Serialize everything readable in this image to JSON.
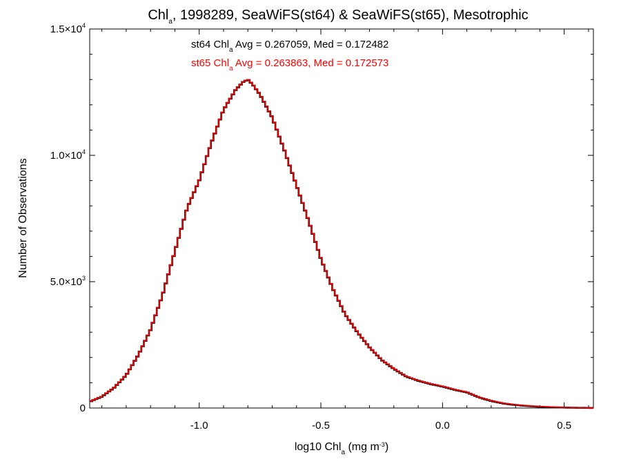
{
  "chart_data": {
    "type": "line",
    "step": true,
    "title": {
      "pre": "Chl",
      "sub": "a",
      "post": ", 1998289, SeaWiFS(st64) & SeaWiFS(st65), Mesotrophic"
    },
    "xlabel": {
      "pre": "log10 Chl",
      "sub": "a",
      "mid": " (mg m",
      "sup": "-3",
      "post": ")"
    },
    "ylabel": "Number of Observations",
    "xlim": [
      -1.45,
      0.62
    ],
    "ylim": [
      0,
      15000
    ],
    "x_ticks": [
      {
        "value": -1.0,
        "label": "-1.0"
      },
      {
        "value": -0.5,
        "label": "-0.5"
      },
      {
        "value": 0.0,
        "label": "0.0"
      },
      {
        "value": 0.5,
        "label": "0.5"
      }
    ],
    "y_ticks": [
      {
        "value": 0,
        "label": "0",
        "exp": ""
      },
      {
        "value": 5000,
        "label": "5.0×10",
        "exp": "3"
      },
      {
        "value": 10000,
        "label": "1.0×10",
        "exp": "4"
      },
      {
        "value": 15000,
        "label": "1.5×10",
        "exp": "4"
      }
    ],
    "annotations": [
      {
        "pre": "st64 Chl",
        "sub": "a",
        "post": " Avg = 0.267059, Med = 0.172482",
        "color": "#000000"
      },
      {
        "pre": "st65 Chl",
        "sub": "a",
        "post": " Avg = 0.263863, Med = 0.172573",
        "color": "#ff0000"
      }
    ],
    "series": [
      {
        "color": "#000000",
        "x": [
          -1.45,
          -1.4,
          -1.35,
          -1.3,
          -1.25,
          -1.2,
          -1.15,
          -1.1,
          -1.05,
          -1.0,
          -0.95,
          -0.9,
          -0.85,
          -0.82,
          -0.8,
          -0.78,
          -0.75,
          -0.7,
          -0.65,
          -0.6,
          -0.55,
          -0.5,
          -0.45,
          -0.4,
          -0.35,
          -0.3,
          -0.25,
          -0.2,
          -0.15,
          -0.1,
          -0.05,
          0.0,
          0.05,
          0.1,
          0.15,
          0.2,
          0.25,
          0.3,
          0.35,
          0.4,
          0.45,
          0.5,
          0.55,
          0.6,
          0.62
        ],
        "y": [
          250,
          450,
          800,
          1300,
          2100,
          3100,
          4500,
          6200,
          7900,
          9000,
          10500,
          11800,
          12600,
          12900,
          13000,
          12800,
          12400,
          11500,
          10200,
          8800,
          7400,
          5900,
          4700,
          3700,
          3000,
          2400,
          1900,
          1550,
          1250,
          1080,
          950,
          850,
          720,
          620,
          420,
          280,
          180,
          120,
          80,
          50,
          30,
          20,
          10,
          5,
          0
        ]
      },
      {
        "color": "#ff0000",
        "x": [
          -1.45,
          -1.4,
          -1.35,
          -1.3,
          -1.25,
          -1.2,
          -1.15,
          -1.1,
          -1.05,
          -1.0,
          -0.95,
          -0.9,
          -0.85,
          -0.82,
          -0.8,
          -0.78,
          -0.75,
          -0.7,
          -0.65,
          -0.6,
          -0.55,
          -0.5,
          -0.45,
          -0.4,
          -0.35,
          -0.3,
          -0.25,
          -0.2,
          -0.15,
          -0.1,
          -0.05,
          0.0,
          0.05,
          0.1,
          0.15,
          0.2,
          0.25,
          0.3,
          0.35,
          0.4,
          0.45,
          0.5,
          0.55,
          0.6,
          0.62
        ],
        "y": [
          260,
          460,
          810,
          1310,
          2110,
          3110,
          4510,
          6210,
          7910,
          9010,
          10510,
          11810,
          12610,
          12910,
          13010,
          12810,
          12410,
          11510,
          10210,
          8810,
          7410,
          5910,
          4710,
          3710,
          3010,
          2410,
          1910,
          1560,
          1260,
          1090,
          960,
          860,
          730,
          630,
          430,
          290,
          190,
          130,
          90,
          60,
          40,
          30,
          20,
          10,
          0
        ]
      }
    ]
  }
}
